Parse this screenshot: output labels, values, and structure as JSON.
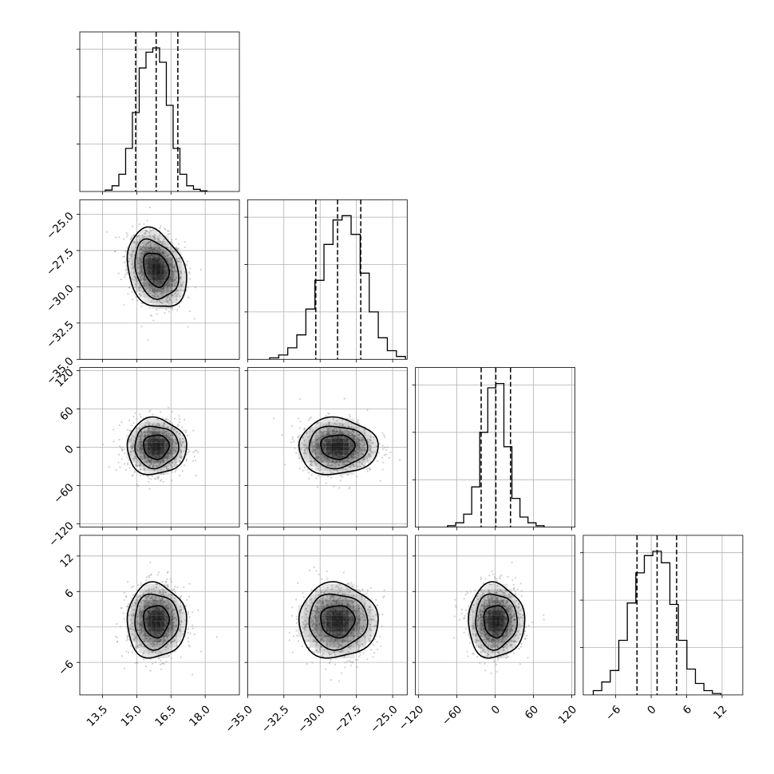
{
  "chart_data": {
    "type": "corner",
    "title": "",
    "grid": true,
    "colors": {
      "line": "#000000",
      "grid": "#b0b0b0",
      "scatter": "#999999",
      "density": "#000000"
    },
    "params": [
      {
        "range": [
          12.5,
          19.5
        ],
        "ticks": [
          13.5,
          15.0,
          16.5,
          18.0
        ],
        "tick_labels": [
          "13.5",
          "15.0",
          "16.5",
          "18.0"
        ],
        "quantiles": [
          14.95,
          15.85,
          16.8
        ],
        "median": 15.85,
        "sd": 0.62
      },
      {
        "range": [
          -35.0,
          -24.0
        ],
        "ticks": [
          -35.0,
          -32.5,
          -30.0,
          -27.5,
          -25.0
        ],
        "tick_labels": [
          "−35.0",
          "−32.5",
          "−30.0",
          "−27.5",
          "−25.0"
        ],
        "quantiles": [
          -30.3,
          -28.8,
          -27.2
        ],
        "median": -28.8,
        "sd": 1.3
      },
      {
        "range": [
          -125,
          125
        ],
        "ticks": [
          -120,
          -60,
          0,
          60,
          120
        ],
        "tick_labels": [
          "−120",
          "−60",
          "0",
          "60",
          "120"
        ],
        "quantiles": [
          -22,
          1,
          24
        ],
        "median": 1,
        "sd": 21
      },
      {
        "range": [
          -11.5,
          15.5
        ],
        "ticks": [
          -6,
          0,
          6,
          12
        ],
        "tick_labels": [
          "−6",
          "0",
          "6",
          "12"
        ],
        "quantiles": [
          -2.4,
          1.0,
          4.3
        ],
        "median": 1.0,
        "sd": 3.0
      }
    ],
    "hist_counts": [
      [
        0.01,
        0.04,
        0.12,
        0.3,
        0.55,
        0.86,
        0.97,
        1.0,
        0.9,
        0.6,
        0.3,
        0.12,
        0.04,
        0.015,
        0.005
      ],
      [
        0.01,
        0.03,
        0.08,
        0.17,
        0.35,
        0.55,
        0.8,
        0.97,
        1.0,
        0.87,
        0.6,
        0.33,
        0.15,
        0.06,
        0.02
      ],
      [
        0.01,
        0.03,
        0.09,
        0.28,
        0.66,
        0.97,
        1.0,
        0.56,
        0.2,
        0.07,
        0.03,
        0.01
      ],
      [
        0.03,
        0.09,
        0.17,
        0.38,
        0.64,
        0.85,
        0.97,
        1.0,
        0.92,
        0.63,
        0.38,
        0.18,
        0.08,
        0.03,
        0.01
      ]
    ],
    "correlations": {
      "1-0": -0.25,
      "2-0": 0.0,
      "2-1": 0.0,
      "3-0": 0.0,
      "3-1": 0.0,
      "3-2": 0.0
    }
  }
}
